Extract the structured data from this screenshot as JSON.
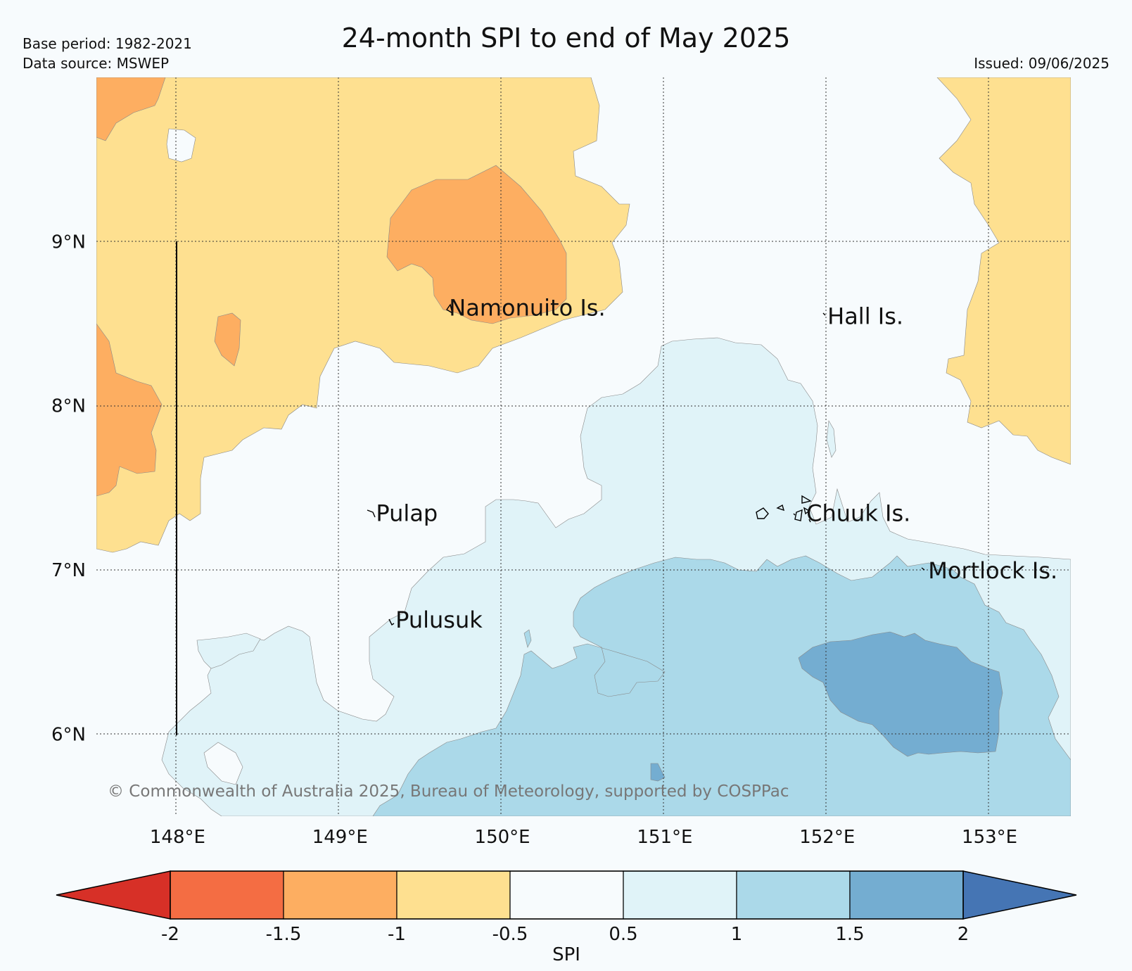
{
  "header": {
    "title": "24-month SPI to end of May 2025",
    "base_period": "Base period: 1982-2021",
    "data_source": "Data source: MSWEP",
    "issued": "Issued: 09/06/2025"
  },
  "map": {
    "lon_range": [
      147.5,
      153.5
    ],
    "lat_range": [
      5.5,
      10.0
    ],
    "lon_ticks": [
      {
        "value": 148,
        "label": "148°E"
      },
      {
        "value": 149,
        "label": "149°E"
      },
      {
        "value": 150,
        "label": "150°E"
      },
      {
        "value": 151,
        "label": "151°E"
      },
      {
        "value": 152,
        "label": "152°E"
      },
      {
        "value": 153,
        "label": "153°E"
      }
    ],
    "lat_ticks": [
      {
        "value": 9,
        "label": "9°N"
      },
      {
        "value": 8,
        "label": "8°N"
      },
      {
        "value": 7,
        "label": "7°N"
      },
      {
        "value": 6,
        "label": "6°N"
      }
    ],
    "places": [
      {
        "name": "Namonuito Is.",
        "lon": 149.65,
        "lat": 8.6
      },
      {
        "name": "Hall Is.",
        "lon": 151.98,
        "lat": 8.55
      },
      {
        "name": "Pulap",
        "lon": 149.2,
        "lat": 7.35
      },
      {
        "name": "Chuuk Is.",
        "lon": 151.85,
        "lat": 7.35
      },
      {
        "name": "Mortlock Is.",
        "lon": 152.6,
        "lat": 7.0
      },
      {
        "name": "Pulusuk",
        "lon": 149.32,
        "lat": 6.7
      }
    ],
    "copyright": "© Commonwealth of Australia 2025, Bureau of Meteorology, supported by COSPPac"
  },
  "colorbar": {
    "label": "SPI",
    "ticks": [
      "-2",
      "-1.5",
      "-1",
      "-0.5",
      "0.5",
      "1",
      "1.5",
      "2"
    ],
    "under_color": "#d73027",
    "over_color": "#4575b4",
    "bins": [
      {
        "range": "-2 to -1.5",
        "color": "#f46d43"
      },
      {
        "range": "-1.5 to -1",
        "color": "#fdae61"
      },
      {
        "range": "-1 to -0.5",
        "color": "#fee090"
      },
      {
        "range": "-0.5 to 0.5",
        "color": "#f7fbfd"
      },
      {
        "range": "0.5 to 1",
        "color": "#e0f3f8"
      },
      {
        "range": "1 to 1.5",
        "color": "#abd9e9"
      },
      {
        "range": "1.5 to 2",
        "color": "#74add1"
      }
    ]
  }
}
